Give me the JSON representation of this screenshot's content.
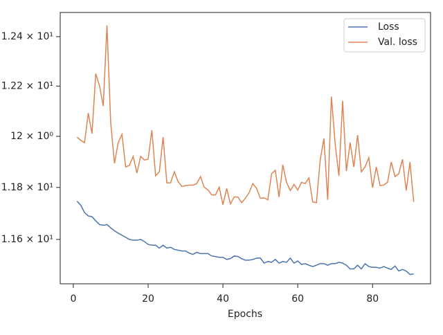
{
  "chart_data": {
    "type": "line",
    "xlabel": "Epochs",
    "log_y": true,
    "grid": false,
    "legend": "upper right",
    "x": [
      1,
      2,
      3,
      4,
      5,
      6,
      7,
      8,
      9,
      10,
      11,
      12,
      13,
      14,
      15,
      16,
      17,
      18,
      19,
      20,
      21,
      22,
      23,
      24,
      25,
      26,
      27,
      28,
      29,
      30,
      31,
      32,
      33,
      34,
      35,
      36,
      37,
      38,
      39,
      40,
      41,
      42,
      43,
      44,
      45,
      46,
      47,
      48,
      49,
      50,
      51,
      52,
      53,
      54,
      55,
      56,
      57,
      58,
      59,
      60,
      61,
      62,
      63,
      64,
      65,
      66,
      67,
      68,
      69,
      70,
      71,
      72,
      73,
      74,
      75,
      76,
      77,
      78,
      79,
      80,
      81,
      82,
      83,
      84,
      85,
      86,
      87,
      88,
      89,
      90,
      91
    ],
    "series": [
      {
        "name": "Loss",
        "color": "#4c72b0",
        "values": [
          11.747,
          11.731,
          11.703,
          11.69,
          11.687,
          11.671,
          11.657,
          11.654,
          11.657,
          11.644,
          11.633,
          11.624,
          11.616,
          11.608,
          11.6,
          11.597,
          11.597,
          11.6,
          11.592,
          11.581,
          11.578,
          11.578,
          11.567,
          11.578,
          11.567,
          11.57,
          11.562,
          11.559,
          11.556,
          11.556,
          11.548,
          11.543,
          11.551,
          11.546,
          11.546,
          11.546,
          11.537,
          11.535,
          11.532,
          11.532,
          11.524,
          11.527,
          11.537,
          11.535,
          11.527,
          11.521,
          11.521,
          11.524,
          11.529,
          11.529,
          11.51,
          11.516,
          11.513,
          11.524,
          11.51,
          11.516,
          11.513,
          11.529,
          11.51,
          11.518,
          11.505,
          11.508,
          11.502,
          11.497,
          11.502,
          11.508,
          11.508,
          11.502,
          11.508,
          11.508,
          11.513,
          11.51,
          11.502,
          11.488,
          11.488,
          11.502,
          11.488,
          11.508,
          11.497,
          11.494,
          11.494,
          11.491,
          11.497,
          11.491,
          11.486,
          11.499,
          11.48,
          11.486,
          11.48,
          11.467,
          11.469
        ]
      },
      {
        "name": "Val. loss",
        "color": "#dd8452",
        "values": [
          11.997,
          11.984,
          11.975,
          12.092,
          12.011,
          12.25,
          12.201,
          12.12,
          12.446,
          12.052,
          11.894,
          11.975,
          12.008,
          11.88,
          11.886,
          11.921,
          11.856,
          11.921,
          11.907,
          11.91,
          12.024,
          11.845,
          11.861,
          11.997,
          11.818,
          11.818,
          11.861,
          11.823,
          11.804,
          11.807,
          11.809,
          11.809,
          11.815,
          11.842,
          11.801,
          11.79,
          11.771,
          11.771,
          11.801,
          11.733,
          11.796,
          11.736,
          11.763,
          11.763,
          11.741,
          11.758,
          11.78,
          11.815,
          11.796,
          11.758,
          11.76,
          11.752,
          11.853,
          11.867,
          11.763,
          11.888,
          11.82,
          11.788,
          11.812,
          11.79,
          11.82,
          11.815,
          11.837,
          11.744,
          11.741,
          11.907,
          11.992,
          11.752,
          12.158,
          11.97,
          11.845,
          12.141,
          11.864,
          11.975,
          11.88,
          12.005,
          11.861,
          11.88,
          11.916,
          11.799,
          11.88,
          11.807,
          11.809,
          11.82,
          11.899,
          11.842,
          11.853,
          11.91,
          11.788,
          11.899,
          11.744
        ]
      }
    ],
    "xlim": [
      -3.5,
      95.5
    ],
    "xticks": [
      0,
      20,
      40,
      60,
      80
    ],
    "ylim": [
      11.432,
      12.499
    ],
    "yticks": [
      {
        "value": 11.6,
        "label": "1.16 × 10¹"
      },
      {
        "value": 11.8,
        "label": "1.18 × 10¹"
      },
      {
        "value": 12.0,
        "label": "12 × 10⁰"
      },
      {
        "value": 12.2,
        "label": "1.22 × 10¹"
      },
      {
        "value": 12.4,
        "label": "1.24 × 10¹"
      }
    ]
  }
}
